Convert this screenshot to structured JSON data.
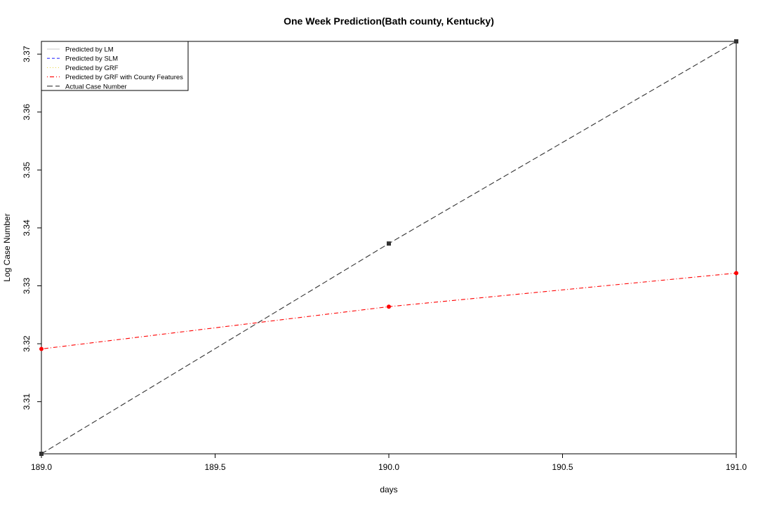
{
  "chart_data": {
    "type": "line",
    "title": "One Week Prediction(Bath county, Kentucky)",
    "xlabel": "days",
    "ylabel": "Log Case Number",
    "xlim": [
      189.0,
      191.0
    ],
    "ylim": [
      3.301,
      3.3722
    ],
    "x_ticks": [
      "189.0",
      "189.5",
      "190.0",
      "190.5",
      "191.0"
    ],
    "y_ticks": [
      "3.31",
      "3.32",
      "3.33",
      "3.34",
      "3.35",
      "3.36",
      "3.37"
    ],
    "grid": false,
    "legend_position": "top-left",
    "series": [
      {
        "name": "Predicted by LM",
        "color": "#c8c8c8",
        "dash": "solid",
        "x": [],
        "y": []
      },
      {
        "name": "Predicted by SLM",
        "color": "#3333ff",
        "dash": "dashed",
        "x": [],
        "y": []
      },
      {
        "name": "Predicted by GRF",
        "color": "#e6d44a",
        "dash": "dotted",
        "x": [],
        "y": []
      },
      {
        "name": "Predicted by GRF with County Features",
        "color": "#ff0000",
        "dash": "dotdash",
        "marker": "circle",
        "x": [
          189.0,
          190.0,
          191.0
        ],
        "y": [
          3.3191,
          3.3264,
          3.3322
        ]
      },
      {
        "name": "Actual Case Number",
        "color": "#333333",
        "dash": "longdash",
        "marker": "square",
        "x": [
          189.0,
          190.0,
          191.0
        ],
        "y": [
          3.301,
          3.3373,
          3.3722
        ]
      }
    ]
  }
}
